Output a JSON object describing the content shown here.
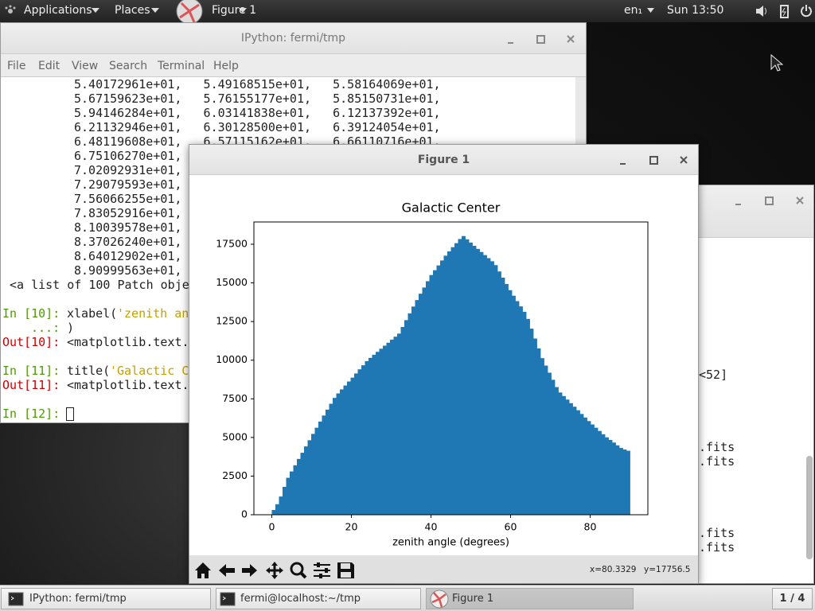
{
  "top_bar": {
    "applications": "Applications",
    "places": "Places",
    "active_window": "Figure 1",
    "keyboard": "en₁",
    "clock": "Sun 13:50"
  },
  "terminal": {
    "title": "IPython: fermi/tmp",
    "menu": [
      "File",
      "Edit",
      "View",
      "Search",
      "Terminal",
      "Help"
    ],
    "output": [
      "5.40172961e+01,   5.49168515e+01,   5.58164069e+01,",
      "5.67159623e+01,   5.76155177e+01,   5.85150731e+01,",
      "5.94146284e+01,   6.03141838e+01,   6.12137392e+01,",
      "6.21132946e+01,   6.30128500e+01,   6.39124054e+01,",
      "6.48119608e+01,   6.57115162e+01,   6.66110716e+01,",
      "6.75106270e+01,",
      "7.02092931e+01,",
      "7.29079593e+01,",
      "7.56066255e+01,",
      "7.83052916e+01,",
      "8.10039578e+01,",
      "8.37026240e+01,",
      "8.64012902e+01,",
      "8.90999563e+01,",
      "<a list of 100 Patch obje"
    ],
    "session": [
      {
        "prompt": "In [10]:",
        "code": "xlabel(",
        "string": "'zenith an"
      },
      {
        "prompt": "...:",
        "code": ")"
      },
      {
        "prompt": "Out[10]:",
        "code": "<matplotlib.text."
      },
      {
        "prompt": "In [11]:",
        "code": "title(",
        "string": "'Galactic C"
      },
      {
        "prompt": "Out[11]:",
        "code": "<matplotlib.text."
      },
      {
        "prompt": "In [12]:"
      }
    ]
  },
  "background_window": {
    "lines": [
      "<52]",
      ".fits",
      ".fits",
      ".fits",
      ".fits"
    ]
  },
  "figure_window": {
    "title": "Figure 1",
    "status_x": "x=80.3329",
    "status_y": "y=17756.5"
  },
  "chart_data": {
    "type": "histogram",
    "title": "Galactic Center",
    "x_label": "zenith angle (degrees)",
    "color": "#1f77b4",
    "bins": [
      0,
      0.9,
      1.8,
      2.7,
      3.6,
      4.5,
      5.4,
      6.3,
      7.2,
      8.1,
      9,
      9.9,
      10.8,
      11.7,
      12.6,
      13.5,
      14.4,
      15.3,
      16.2,
      17.1,
      18,
      18.9,
      19.8,
      20.7,
      21.6,
      22.5,
      23.4,
      24.3,
      25.2,
      26.1,
      27,
      27.9,
      28.8,
      29.7,
      30.6,
      31.5,
      32.4,
      33.3,
      34.2,
      35.1,
      36,
      36.9,
      37.8,
      38.7,
      39.6,
      40.5,
      41.4,
      42.3,
      43.2,
      44.1,
      45,
      45.9,
      46.8,
      47.7,
      48.6,
      49.5,
      50.4,
      51.3,
      52.2,
      53.1,
      54,
      54.9,
      55.8,
      56.7,
      57.6,
      58.5,
      59.4,
      60.3,
      61.2,
      62.1,
      63,
      63.9,
      64.8,
      65.7,
      66.6,
      67.5,
      68.4,
      69.3,
      70.2,
      71.1,
      72,
      72.9,
      73.8,
      74.7,
      75.6,
      76.5,
      77.4,
      78.3,
      79.2,
      80.1,
      81,
      81.9,
      82.8,
      83.7,
      84.6,
      85.5,
      86.4,
      87.3,
      88.2,
      89.1,
      90
    ],
    "values": [
      310,
      680,
      1180,
      1800,
      2390,
      2800,
      3200,
      3610,
      4010,
      4420,
      4820,
      5230,
      5630,
      6030,
      6420,
      6800,
      7180,
      7560,
      7850,
      8110,
      8360,
      8620,
      8870,
      9140,
      9410,
      9670,
      9940,
      10150,
      10350,
      10540,
      10740,
      10940,
      11130,
      11330,
      11520,
      11720,
      12150,
      12590,
      13030,
      13470,
      13890,
      14300,
      14700,
      15110,
      15510,
      15820,
      16130,
      16450,
      16760,
      17040,
      17310,
      17570,
      17840,
      18030,
      17820,
      17610,
      17400,
      17200,
      17000,
      16800,
      16600,
      16400,
      16150,
      15740,
      15340,
      14930,
      14530,
      14170,
      13820,
      13480,
      13130,
      12670,
      12040,
      11400,
      10760,
      10130,
      9650,
      9190,
      8730,
      8260,
      7910,
      7680,
      7450,
      7220,
      6990,
      6760,
      6520,
      6290,
      6060,
      5840,
      5630,
      5420,
      5210,
      5010,
      4840,
      4670,
      4490,
      4320,
      4220,
      4140
    ],
    "xlim": [
      -4.5,
      94.5
    ],
    "xticks": [
      0,
      20,
      40,
      60,
      80
    ],
    "ylim": [
      0,
      18942
    ],
    "yticks": [
      0,
      2500,
      5000,
      7500,
      10000,
      12500,
      15000,
      17500
    ]
  },
  "taskbar": {
    "items": [
      "IPython: fermi/tmp",
      "fermi@localhost:~/tmp",
      "Figure 1"
    ],
    "workspace": "1 / 4"
  }
}
